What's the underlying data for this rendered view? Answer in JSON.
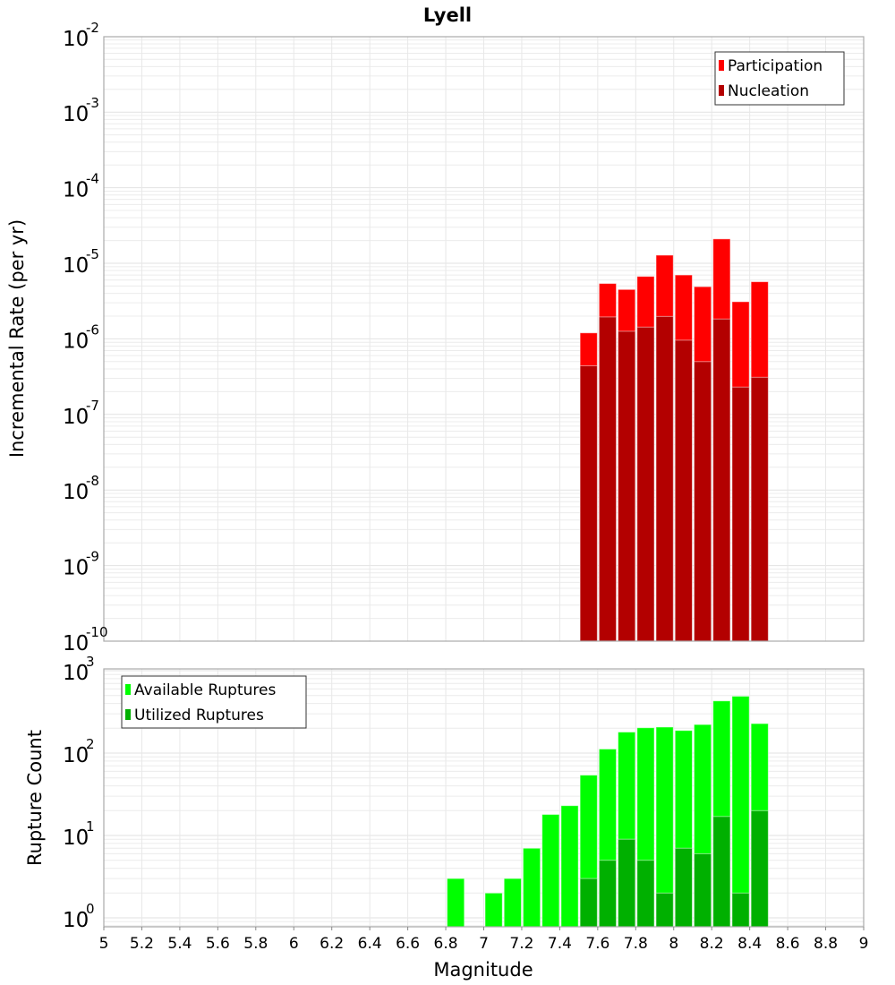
{
  "chart_data": [
    {
      "type": "bar",
      "title": "Lyell",
      "xlabel": "Magnitude",
      "ylabel": "Incremental Rate (per yr)",
      "yscale": "log",
      "ylim": [
        1e-10,
        0.01
      ],
      "xlim": [
        5,
        9
      ],
      "grid": true,
      "legend_position": "top-right",
      "x": [
        7.55,
        7.65,
        7.75,
        7.85,
        7.95,
        8.05,
        8.15,
        8.25,
        8.35,
        8.45
      ],
      "series": [
        {
          "name": "Participation",
          "color": "#ff0000",
          "values": [
            1.2e-06,
            5.4e-06,
            4.5e-06,
            6.7e-06,
            1.28e-05,
            7e-06,
            4.9e-06,
            2.1e-05,
            3.1e-06,
            5.7e-06
          ]
        },
        {
          "name": "Nucleation",
          "color": "#b30000",
          "values": [
            4.4e-07,
            1.95e-06,
            1.26e-06,
            1.43e-06,
            1.98e-06,
            9.6e-07,
            5e-07,
            1.83e-06,
            2.3e-07,
            3.1e-07
          ]
        }
      ],
      "ytick_exponents": [
        "-10",
        "-9",
        "-8",
        "-7",
        "-6",
        "-5",
        "-4",
        "-3",
        "-2"
      ]
    },
    {
      "type": "bar",
      "xlabel": "Magnitude",
      "ylabel": "Rupture Count",
      "yscale": "log",
      "ylim": [
        0.78,
        1120
      ],
      "xlim": [
        5,
        9
      ],
      "grid": true,
      "legend_position": "top-left",
      "x": [
        6.85,
        7.05,
        7.15,
        7.25,
        7.35,
        7.45,
        7.55,
        7.65,
        7.75,
        7.85,
        7.95,
        8.05,
        8.15,
        8.25,
        8.35,
        8.45
      ],
      "series": [
        {
          "name": "Available Ruptures",
          "color": "#00ff00",
          "values": [
            3,
            2,
            3,
            7,
            18,
            23,
            54,
            112,
            180,
            203,
            207,
            188,
            222,
            430,
            490,
            228
          ]
        },
        {
          "name": "Utilized Ruptures",
          "color": "#00b000",
          "values": [
            0,
            0,
            0,
            0,
            0,
            0,
            3,
            5,
            9,
            5,
            2,
            7,
            6,
            17,
            2,
            20
          ]
        }
      ],
      "ytick_exponents": [
        "0",
        "1",
        "2",
        "3"
      ],
      "xticks": [
        "5",
        "5.2",
        "5.4",
        "5.6",
        "5.8",
        "6",
        "6.2",
        "6.4",
        "6.6",
        "6.8",
        "7",
        "7.2",
        "7.4",
        "7.6",
        "7.8",
        "8",
        "8.2",
        "8.4",
        "8.6",
        "8.8",
        "9"
      ]
    }
  ]
}
